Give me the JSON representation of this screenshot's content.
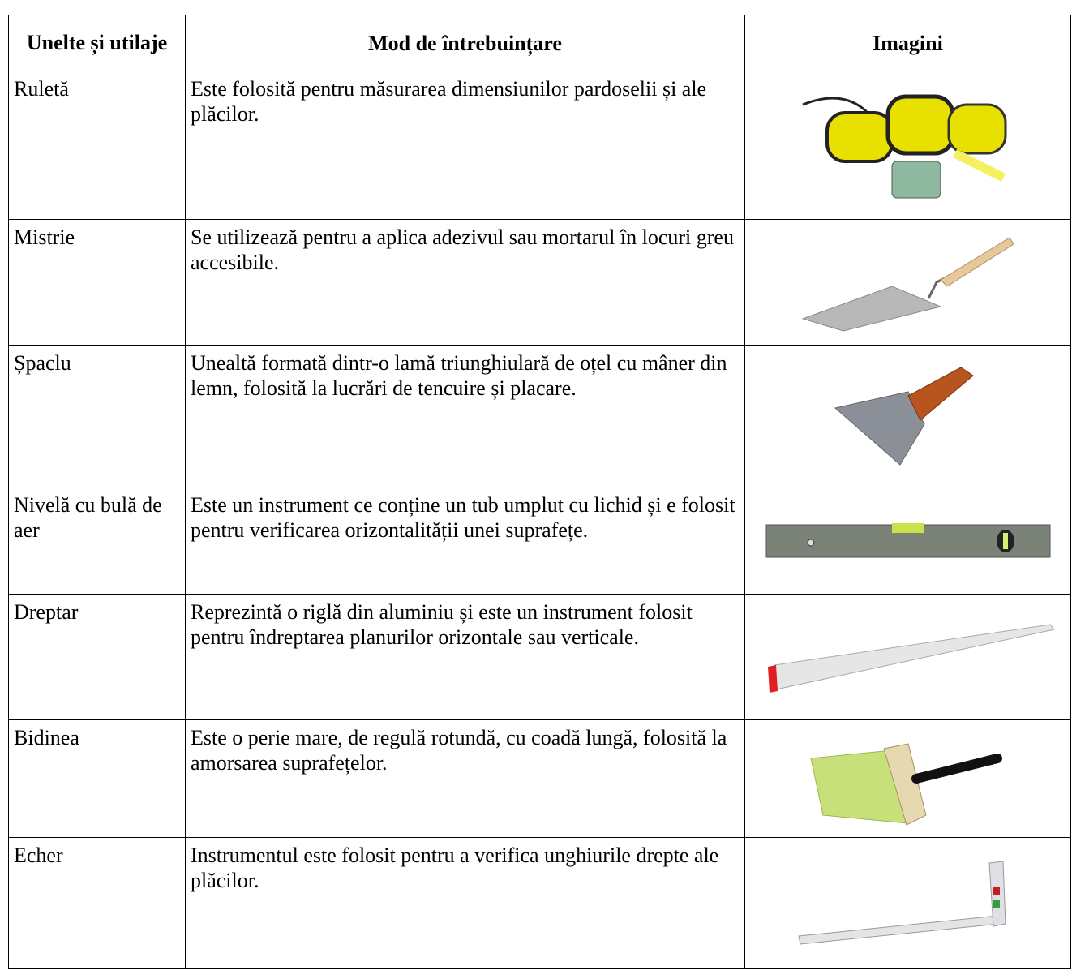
{
  "table": {
    "header": [
      "Unelte și utilaje",
      "Mod de întrebuințare",
      "Imagini"
    ],
    "rows": [
      [
        "Ruletă",
        "Este folosită pentru măsurarea dimensiunilor pardoselii și ale plăcilor."
      ],
      [
        "Mistrie",
        "Se utilizează pentru a aplica adezivul sau mortarul în locuri greu accesibile."
      ],
      [
        "Șpaclu",
        "Unealtă formată dintr-o lamă triunghiulară de oțel cu mâner din lemn, folosită la lucrări de tencuire și placare."
      ],
      [
        "Nivelă cu bulă de aer",
        "Este un instrument ce conține un tub umplut cu lichid și e folosit pentru verificarea orizontalității unei suprafețe."
      ],
      [
        "Dreptar",
        "Reprezintă o riglă din aluminiu și este un instrument folosit pentru îndreptarea planurilor orizontale sau verticale."
      ],
      [
        "Bidinea",
        "Este o perie mare, de regulă rotundă, cu coadă lungă, folosită la amorsarea suprafețelor."
      ],
      [
        "Echer",
        "Instrumentul este folosit pentru a verifica unghiurile drepte ale plăcilor."
      ]
    ]
  }
}
